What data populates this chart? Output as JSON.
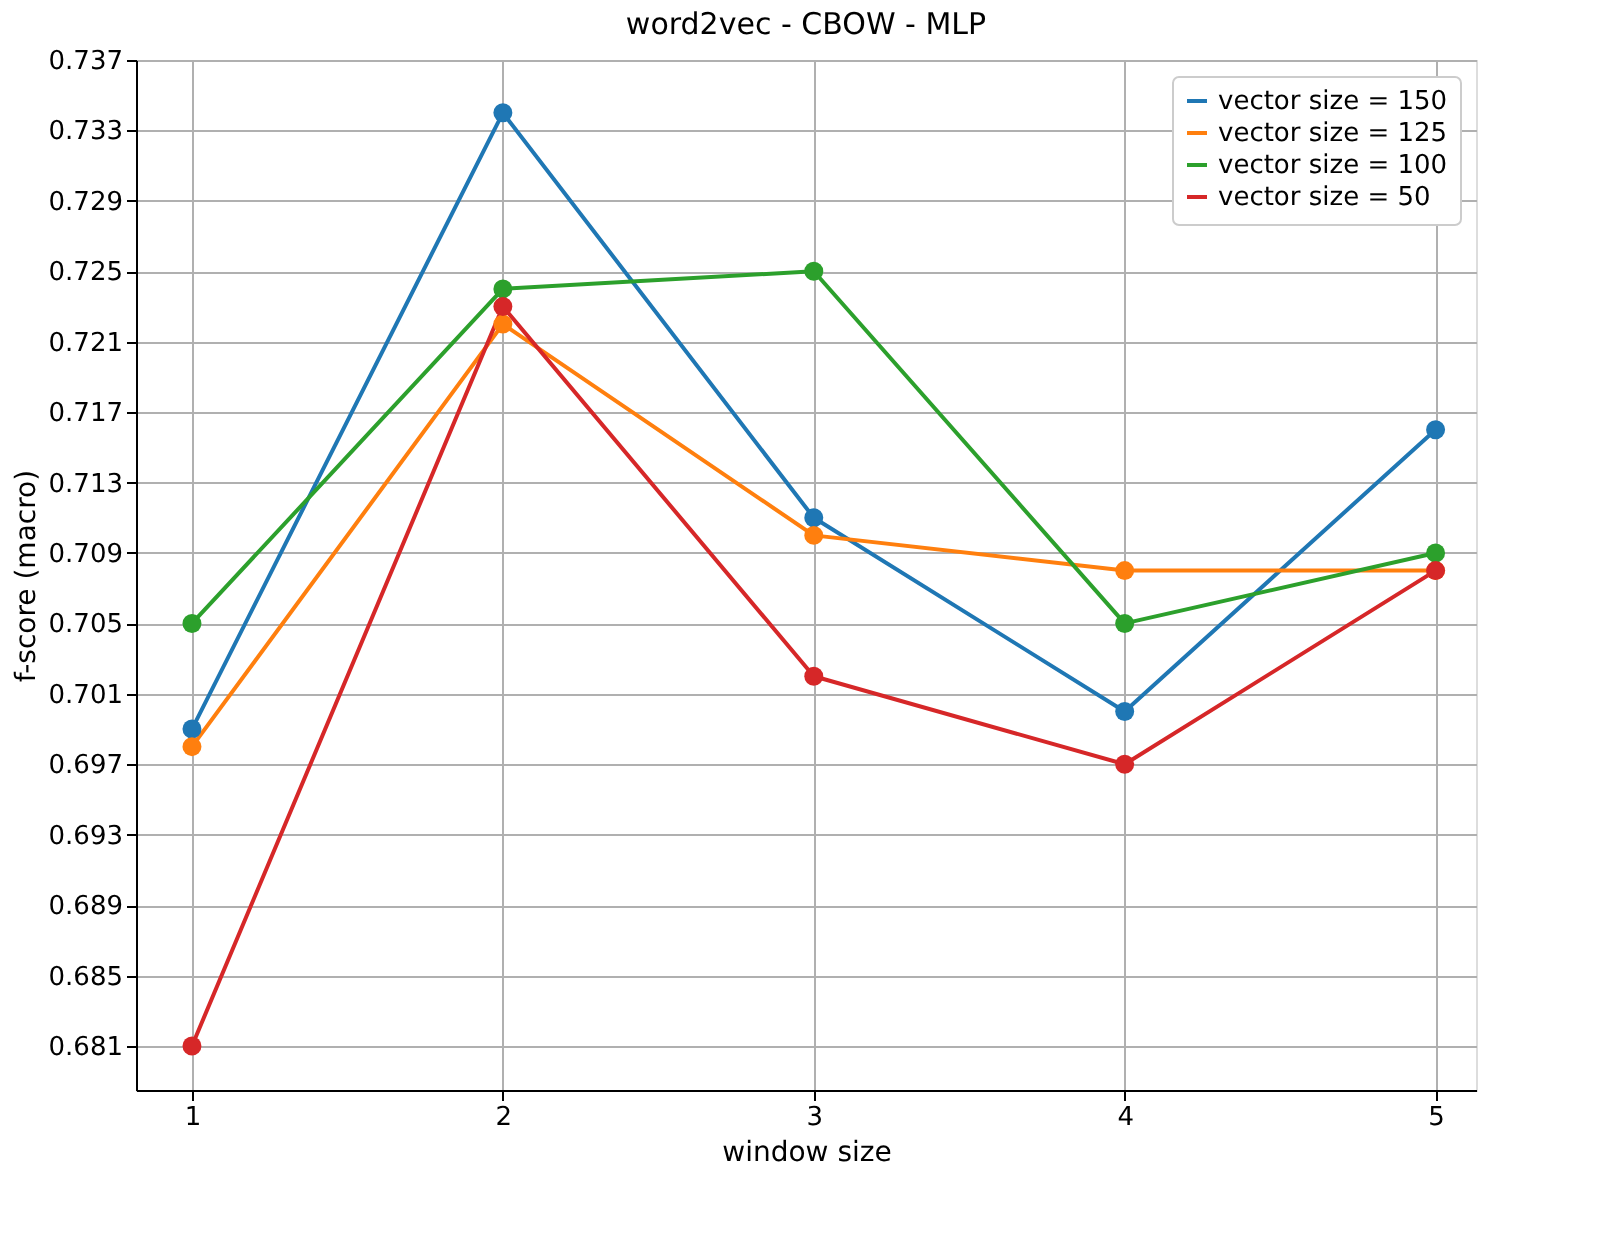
{
  "chart_data": {
    "type": "line",
    "title": "word2vec - CBOW - MLP",
    "xlabel": "window size",
    "ylabel": "f-score (macro)",
    "x": [
      1,
      2,
      3,
      4,
      5
    ],
    "series": [
      {
        "name": "vector size = 150",
        "color": "#1f77b4",
        "values": [
          0.699,
          0.734,
          0.711,
          0.7,
          0.716
        ]
      },
      {
        "name": "vector size = 125",
        "color": "#ff7f0e",
        "values": [
          0.698,
          0.722,
          0.71,
          0.708,
          0.708
        ]
      },
      {
        "name": "vector size = 100",
        "color": "#2ca02c",
        "values": [
          0.705,
          0.724,
          0.725,
          0.705,
          0.709
        ]
      },
      {
        "name": "vector size = 50",
        "color": "#d62728",
        "values": [
          0.681,
          0.723,
          0.702,
          0.697,
          0.708
        ]
      }
    ],
    "xlim": [
      0.82,
      5.13
    ],
    "xticks": [
      1,
      2,
      3,
      4,
      5
    ],
    "ylim": [
      0.6785,
      0.737
    ],
    "yticks": [
      0.681,
      0.685,
      0.689,
      0.693,
      0.697,
      0.701,
      0.705,
      0.709,
      0.713,
      0.717,
      0.721,
      0.725,
      0.729,
      0.733,
      0.737
    ],
    "grid": true,
    "legend": "top right",
    "marker": "circle",
    "line_style": "solid"
  }
}
